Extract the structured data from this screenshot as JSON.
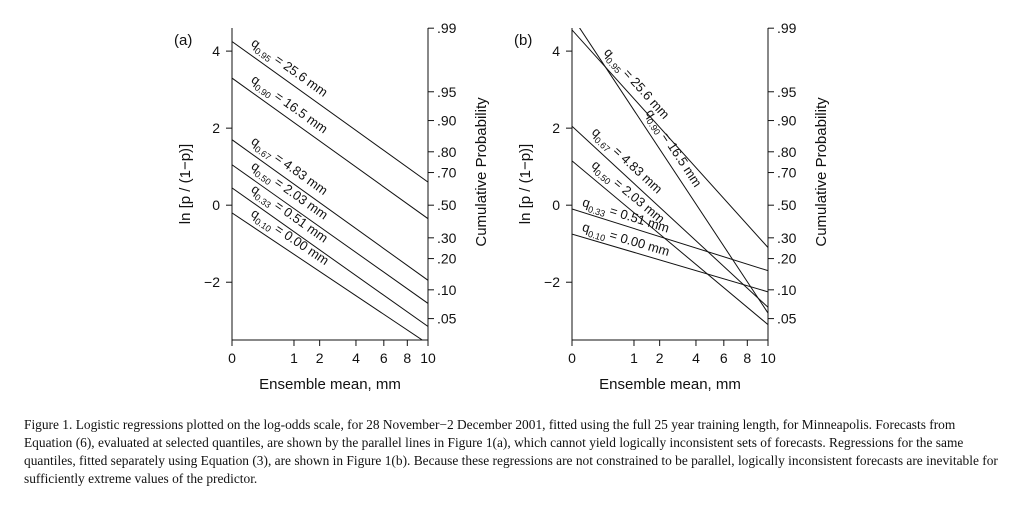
{
  "chart_data": [
    {
      "type": "line",
      "panel_label": "(a)",
      "xlabel": "Ensemble mean, mm",
      "ylabel": "ln [p / (1−p)]",
      "y2label": "Cumulative Probability",
      "x_scale": "sqrt",
      "xlim": [
        0,
        10
      ],
      "ylim": [
        -3.5,
        4.6
      ],
      "x_ticks": [
        0,
        1,
        2,
        4,
        6,
        8,
        10
      ],
      "y_ticks": [
        {
          "value": 4,
          "label": "4"
        },
        {
          "value": 2,
          "label": "2"
        },
        {
          "value": 0,
          "label": "0"
        },
        {
          "value": -2,
          "label": "−2"
        }
      ],
      "y2_ticks": [
        ".99",
        ".95",
        ".90",
        ".80",
        ".70",
        ".50",
        ".30",
        ".20",
        ".10",
        ".05"
      ],
      "series": [
        {
          "sub": "0.95",
          "value": "25.6 mm",
          "x": [
            0,
            10
          ],
          "y": [
            4.25,
            0.6
          ]
        },
        {
          "sub": "0.90",
          "value": "16.5 mm",
          "x": [
            0,
            10
          ],
          "y": [
            3.3,
            -0.35
          ]
        },
        {
          "sub": "0.67",
          "value": "4.83 mm",
          "x": [
            0,
            10
          ],
          "y": [
            1.7,
            -1.95
          ]
        },
        {
          "sub": "0.50",
          "value": "2.03 mm",
          "x": [
            0,
            10
          ],
          "y": [
            1.05,
            -2.55
          ]
        },
        {
          "sub": "0.33",
          "value": "0.51 mm",
          "x": [
            0,
            10
          ],
          "y": [
            0.45,
            -3.15
          ]
        },
        {
          "sub": "0.10",
          "value": "0.00 mm",
          "x": [
            0,
            10
          ],
          "y": [
            -0.2,
            -3.6
          ]
        }
      ]
    },
    {
      "type": "line",
      "panel_label": "(b)",
      "xlabel": "Ensemble mean, mm",
      "ylabel": "ln [p / (1−p)]",
      "y2label": "Cumulative Probability",
      "x_scale": "sqrt",
      "xlim": [
        0,
        10
      ],
      "ylim": [
        -3.5,
        4.6
      ],
      "x_ticks": [
        0,
        1,
        2,
        4,
        6,
        8,
        10
      ],
      "y_ticks": [
        {
          "value": 4,
          "label": "4"
        },
        {
          "value": 2,
          "label": "2"
        },
        {
          "value": 0,
          "label": "0"
        },
        {
          "value": -2,
          "label": "−2"
        }
      ],
      "y2_ticks": [
        ".99",
        ".95",
        ".90",
        ".80",
        ".70",
        ".50",
        ".30",
        ".20",
        ".10",
        ".05"
      ],
      "series": [
        {
          "sub": "0.95",
          "value": "25.6 mm",
          "x": [
            0,
            10
          ],
          "y": [
            4.55,
            -1.1
          ]
        },
        {
          "sub": "0.90",
          "value": "16.5 mm",
          "x": [
            0,
            10
          ],
          "y": [
            4.9,
            -2.8
          ]
        },
        {
          "sub": "0.67",
          "value": "4.83 mm",
          "x": [
            0,
            10
          ],
          "y": [
            2.05,
            -2.65
          ]
        },
        {
          "sub": "0.50",
          "value": "2.03 mm",
          "x": [
            0,
            10
          ],
          "y": [
            1.15,
            -3.1
          ]
        },
        {
          "sub": "0.33",
          "value": "0.51 mm",
          "x": [
            0,
            10
          ],
          "y": [
            -0.1,
            -1.7
          ]
        },
        {
          "sub": "0.10",
          "value": "0.00 mm",
          "x": [
            0,
            10
          ],
          "y": [
            -0.75,
            -2.25
          ]
        }
      ]
    }
  ],
  "caption": "Figure 1. Logistic regressions plotted on the log-odds scale, for 28 November−2 December 2001, fitted using the full 25 year training length, for Minneapolis. Forecasts from Equation (6), evaluated at selected quantiles, are shown by the parallel lines in Figure 1(a), which cannot yield logically inconsistent sets of forecasts. Regressions for the same quantiles, fitted separately using Equation (3), are shown in Figure 1(b). Because these regressions are not constrained to be parallel, logically inconsistent forecasts are inevitable for sufficiently extreme values of the predictor."
}
